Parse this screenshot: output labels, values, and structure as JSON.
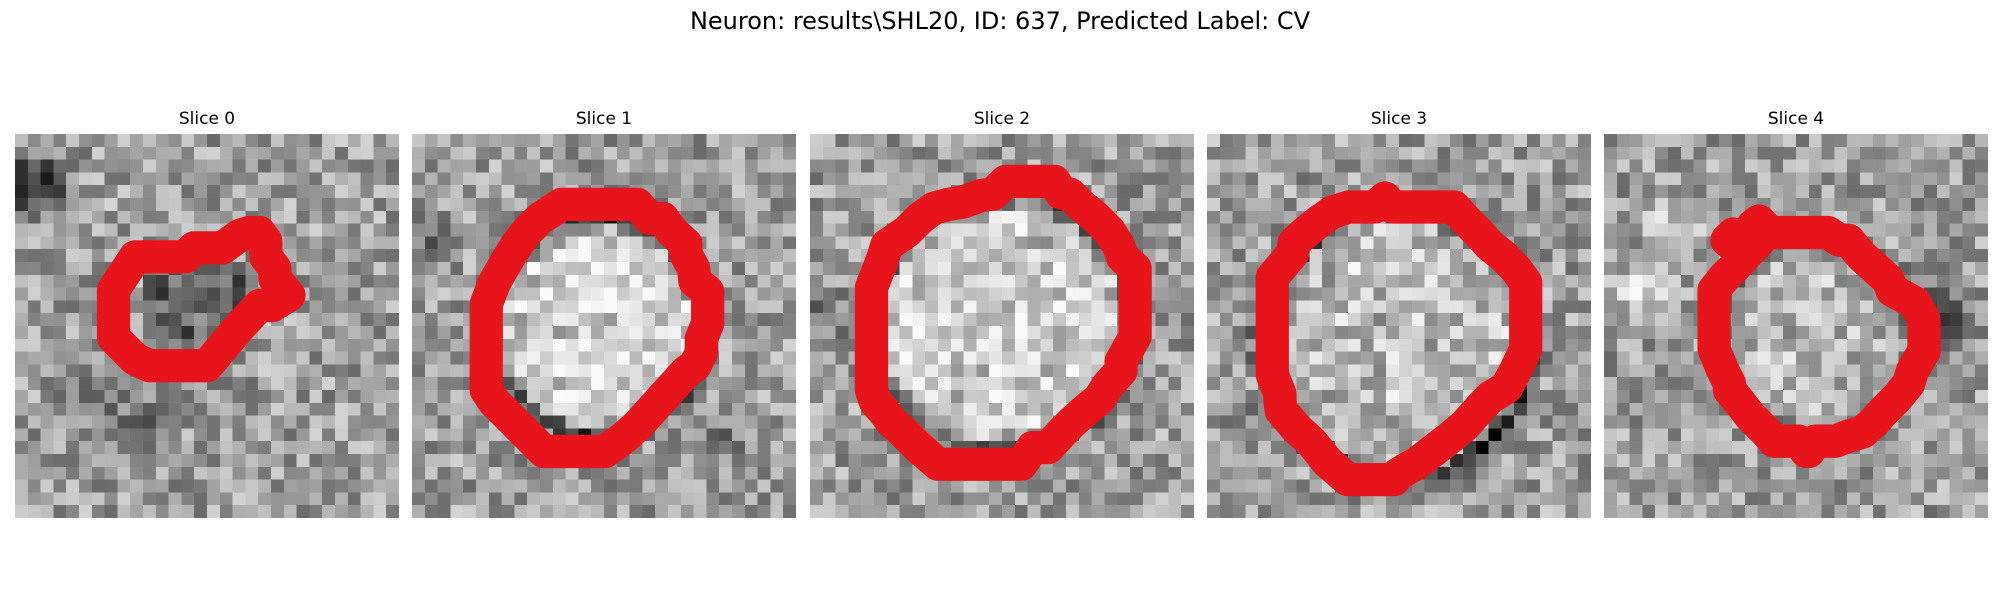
{
  "figure": {
    "title": "Neuron: results\\SHL20, ID: 637, Predicted Label: CV"
  },
  "panels": [
    {
      "title": "Slice 0"
    },
    {
      "title": "Slice 1"
    },
    {
      "title": "Slice 2"
    },
    {
      "title": "Slice 3"
    },
    {
      "title": "Slice 4"
    }
  ],
  "colormap": "gray",
  "contour_color": "#e8141c"
}
